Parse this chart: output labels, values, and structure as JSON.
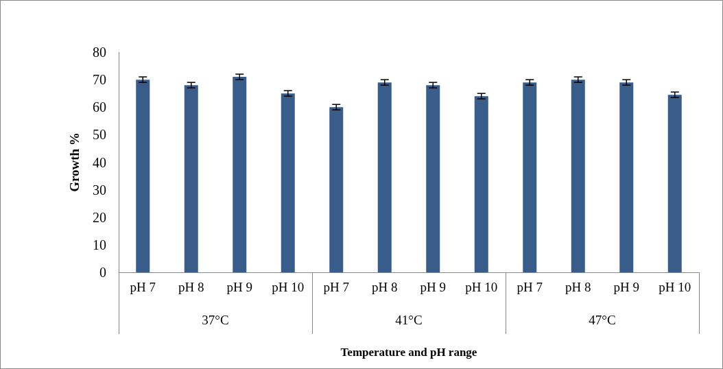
{
  "chart_data": {
    "type": "bar",
    "xlabel": "Temperature and pH range",
    "ylabel": "Growth %",
    "categories": [
      "pH 7",
      "pH 8",
      "pH 9",
      "pH 10",
      "pH 7",
      "pH 8",
      "pH 9",
      "pH 10",
      "pH 7",
      "pH 8",
      "pH 9",
      "pH 10"
    ],
    "values": [
      70,
      68,
      71,
      65,
      60,
      69,
      68,
      64,
      69,
      70,
      69,
      64.5
    ],
    "errors": [
      1,
      1,
      1,
      1,
      1,
      1,
      1,
      1,
      1,
      1,
      1,
      1
    ],
    "color": "#385d8a",
    "ylim": [
      0,
      80
    ],
    "yticks": [
      0,
      10,
      20,
      30,
      40,
      50,
      60,
      70,
      80
    ],
    "grid": false,
    "annotations": [
      "37°C",
      "41°C",
      "47°C"
    ]
  }
}
